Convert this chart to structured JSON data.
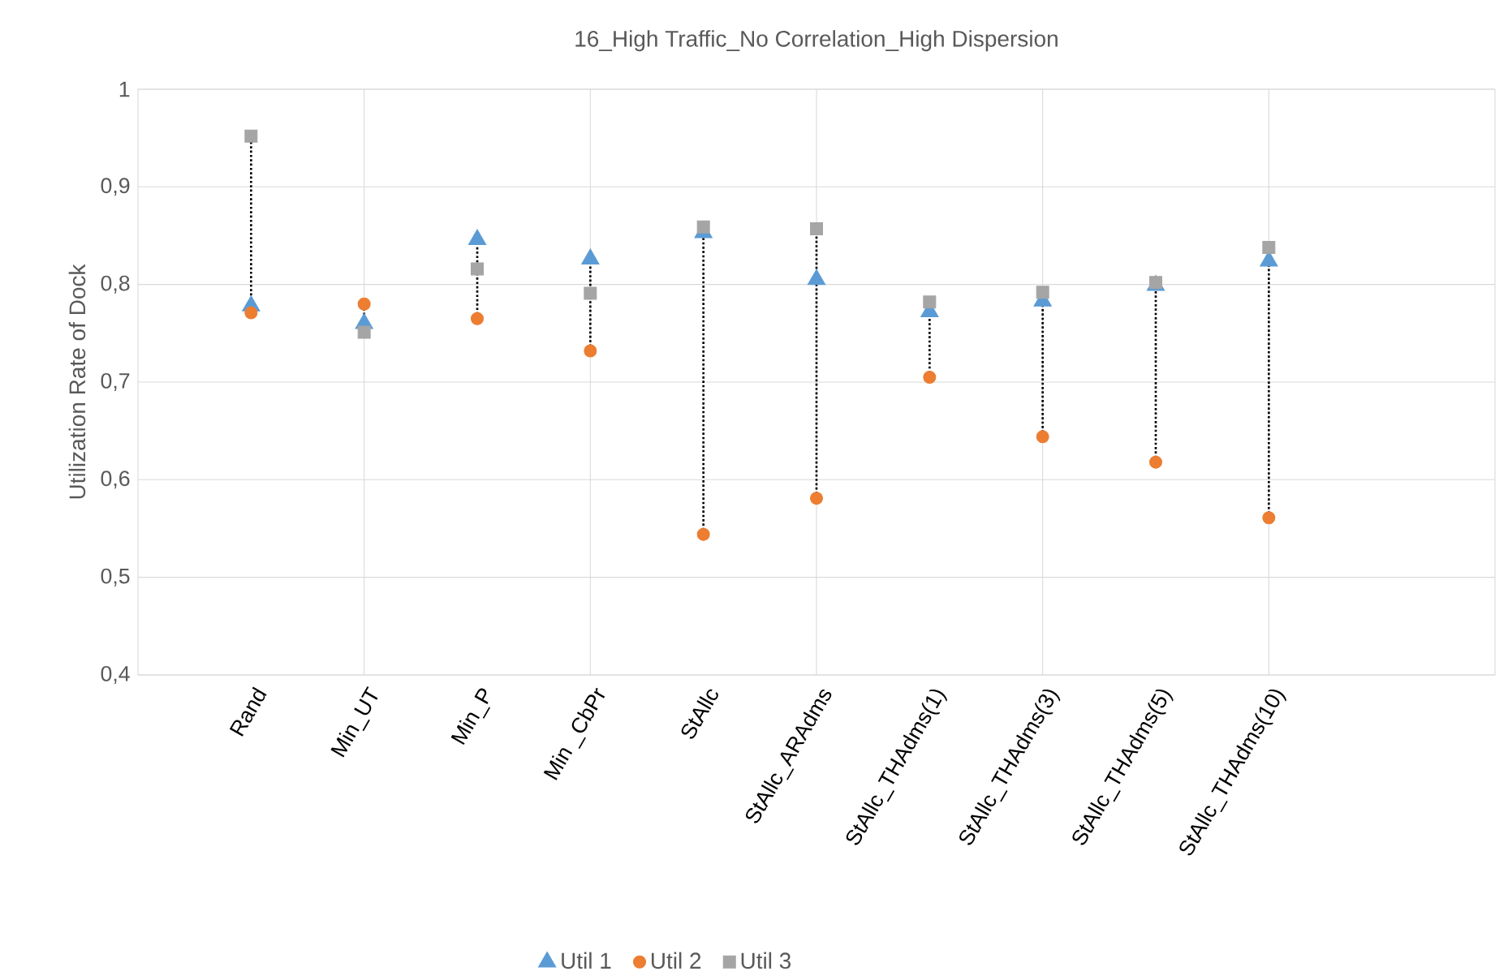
{
  "chart_data": {
    "type": "scatter",
    "title": "16_High Traffic_No Correlation_High Dispersion",
    "ylabel": "Utilization Rate of Dock",
    "categories": [
      "Rand",
      "Min_UT",
      "Min_P",
      "Min _CbPr",
      "StAllc",
      "StAllc_ARAdms",
      "StAllc_THAdms(1)",
      "StAllc_THAdms(3)",
      "StAllc_THAdms(5)",
      "StAllc_THAdms(10)"
    ],
    "series": [
      {
        "name": "Util 1",
        "color": "#5b9bd5",
        "marker": "triangle",
        "values": [
          0.778,
          0.76,
          0.846,
          0.826,
          0.853,
          0.805,
          0.772,
          0.783,
          0.799,
          0.824
        ]
      },
      {
        "name": "Util 2",
        "color": "#ed7d31",
        "marker": "circle",
        "values": [
          0.771,
          0.78,
          0.765,
          0.732,
          0.544,
          0.581,
          0.705,
          0.644,
          0.618,
          0.561
        ]
      },
      {
        "name": "Util 3",
        "color": "#a5a5a5",
        "marker": "square",
        "values": [
          0.952,
          0.751,
          0.816,
          0.791,
          0.859,
          0.857,
          0.782,
          0.792,
          0.802,
          0.838
        ]
      }
    ],
    "ylim": [
      0.4,
      1
    ],
    "yticks": [
      {
        "value": 0.4,
        "label": "0,4"
      },
      {
        "value": 0.5,
        "label": "0,5"
      },
      {
        "value": 0.6,
        "label": "0,6"
      },
      {
        "value": 0.7,
        "label": "0,7"
      },
      {
        "value": 0.8,
        "label": "0,8"
      },
      {
        "value": 0.9,
        "label": "0,9"
      },
      {
        "value": 1,
        "label": "1"
      }
    ],
    "grid": true,
    "legend": "bottom"
  }
}
